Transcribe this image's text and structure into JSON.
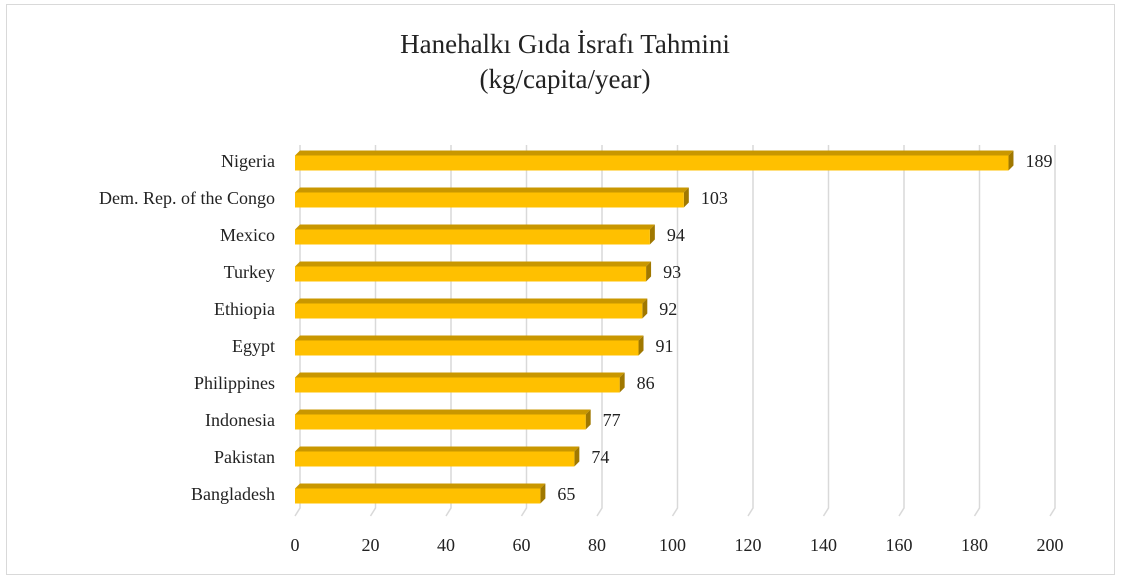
{
  "chart_data": {
    "type": "bar",
    "orientation": "horizontal",
    "title": "Hanehalkı Gıda İsrafı Tahmini",
    "subtitle": "(kg/capita/year)",
    "categories": [
      "Nigeria",
      "Dem. Rep. of the Congo",
      "Mexico",
      "Turkey",
      "Ethiopia",
      "Egypt",
      "Philippines",
      "Indonesia",
      "Pakistan",
      "Bangladesh"
    ],
    "values": [
      189,
      103,
      94,
      93,
      92,
      91,
      86,
      77,
      74,
      65
    ],
    "color": "#ffc000",
    "xlim": [
      0,
      200
    ],
    "xticks": [
      0,
      20,
      40,
      60,
      80,
      100,
      120,
      140,
      160,
      180,
      200
    ],
    "grid": true
  }
}
